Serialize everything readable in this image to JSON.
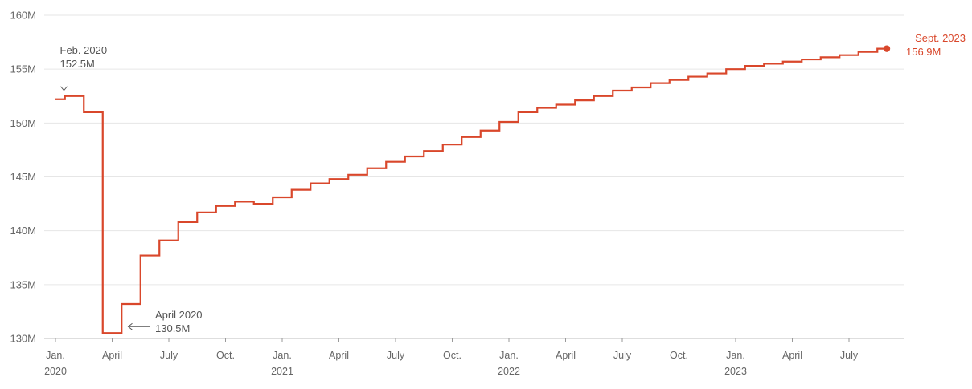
{
  "chart_data": {
    "type": "line",
    "step": true,
    "title": "",
    "xlabel": "",
    "ylabel": "",
    "y_unit": "M",
    "ylim": [
      130,
      160
    ],
    "yticks": [
      {
        "value": 130,
        "label": "130M"
      },
      {
        "value": 135,
        "label": "135M"
      },
      {
        "value": 140,
        "label": "140M"
      },
      {
        "value": 145,
        "label": "145M"
      },
      {
        "value": 150,
        "label": "150M"
      },
      {
        "value": 155,
        "label": "155M"
      },
      {
        "value": 160,
        "label": "160M"
      }
    ],
    "xticks": [
      {
        "date": "2020-01",
        "label": "Jan.",
        "year": "2020"
      },
      {
        "date": "2020-04",
        "label": "April"
      },
      {
        "date": "2020-07",
        "label": "July"
      },
      {
        "date": "2020-10",
        "label": "Oct."
      },
      {
        "date": "2021-01",
        "label": "Jan.",
        "year": "2021"
      },
      {
        "date": "2021-04",
        "label": "April"
      },
      {
        "date": "2021-07",
        "label": "July"
      },
      {
        "date": "2021-10",
        "label": "Oct."
      },
      {
        "date": "2022-01",
        "label": "Jan.",
        "year": "2022"
      },
      {
        "date": "2022-04",
        "label": "April"
      },
      {
        "date": "2022-07",
        "label": "July"
      },
      {
        "date": "2022-10",
        "label": "Oct."
      },
      {
        "date": "2023-01",
        "label": "Jan.",
        "year": "2023"
      },
      {
        "date": "2023-04",
        "label": "April"
      },
      {
        "date": "2023-07",
        "label": "July"
      }
    ],
    "grid": true,
    "color": "#d9472b",
    "series": [
      {
        "x": [
          "2020-01",
          "2020-02",
          "2020-03",
          "2020-04",
          "2020-05",
          "2020-06",
          "2020-07",
          "2020-08",
          "2020-09",
          "2020-10",
          "2020-11",
          "2020-12",
          "2021-01",
          "2021-02",
          "2021-03",
          "2021-04",
          "2021-05",
          "2021-06",
          "2021-07",
          "2021-08",
          "2021-09",
          "2021-10",
          "2021-11",
          "2021-12",
          "2022-01",
          "2022-02",
          "2022-03",
          "2022-04",
          "2022-05",
          "2022-06",
          "2022-07",
          "2022-08",
          "2022-09",
          "2022-10",
          "2022-11",
          "2022-12",
          "2023-01",
          "2023-02",
          "2023-03",
          "2023-04",
          "2023-05",
          "2023-06",
          "2023-07",
          "2023-08",
          "2023-09"
        ],
        "values": [
          152.2,
          152.5,
          151.0,
          130.5,
          133.2,
          137.7,
          139.1,
          140.8,
          141.7,
          142.3,
          142.7,
          142.5,
          143.1,
          143.8,
          144.4,
          144.8,
          145.2,
          145.8,
          146.4,
          146.9,
          147.4,
          148.0,
          148.7,
          149.3,
          150.1,
          151.0,
          151.4,
          151.7,
          152.1,
          152.5,
          153.0,
          153.3,
          153.7,
          154.0,
          154.3,
          154.6,
          155.0,
          155.3,
          155.5,
          155.7,
          155.9,
          156.1,
          156.3,
          156.6,
          156.9
        ]
      }
    ],
    "annotations": [
      {
        "date": "2020-02",
        "value": 152.5,
        "line1": "Feb. 2020",
        "line2": "152.5M"
      },
      {
        "date": "2020-04",
        "value": 130.5,
        "line1": "April 2020",
        "line2": "130.5M"
      },
      {
        "date": "2023-09",
        "value": 156.9,
        "line1": "Sept. 2023",
        "line2": "156.9M"
      }
    ]
  }
}
